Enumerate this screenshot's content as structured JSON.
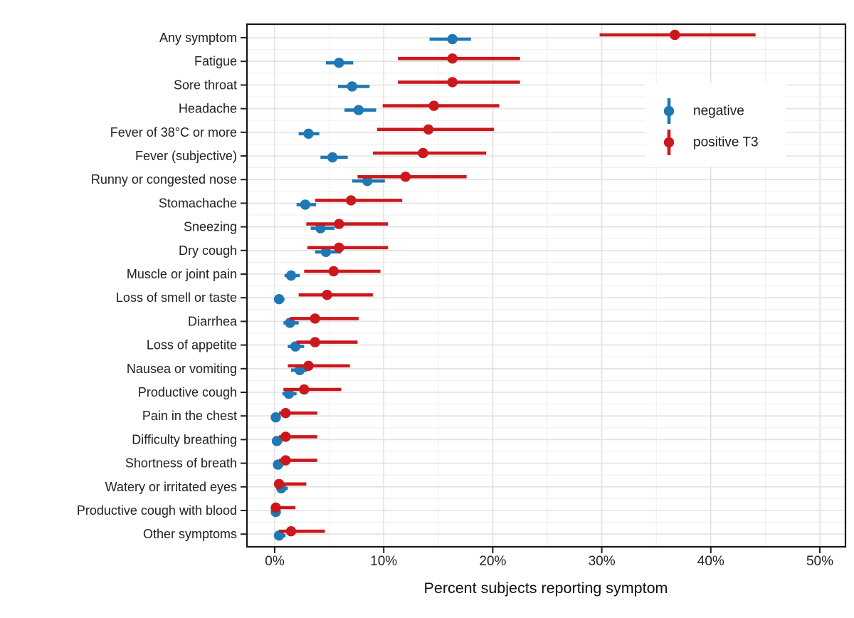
{
  "chart_data": {
    "type": "scatter",
    "subtype": "dot-and-interval (forest plot), horizontal, dodged groups with 95% CI bars",
    "title": "",
    "xlabel": "Percent subjects reporting symptom",
    "ylabel": "",
    "xlim": [
      -2.5,
      52.5
    ],
    "x_ticks": [
      0,
      10,
      20,
      30,
      40,
      50
    ],
    "x_tick_labels": [
      "0%",
      "10%",
      "20%",
      "30%",
      "40%",
      "50%"
    ],
    "x_minor_ticks": [
      5,
      15,
      25,
      35,
      45
    ],
    "grid": "major and minor, light gray on white panel, black panel border",
    "legend_position": "inside top-right",
    "categories": [
      "Any symptom",
      "Fatigue",
      "Sore throat",
      "Headache",
      "Fever of 38°C or more",
      "Fever (subjective)",
      "Runny or congested nose",
      "Stomachache",
      "Sneezing",
      "Dry cough",
      "Muscle or joint pain",
      "Loss of smell or taste",
      "Diarrhea",
      "Loss of appetite",
      "Nausea or vomiting",
      "Productive cough",
      "Pain in the chest",
      "Difficulty breathing",
      "Shortness of breath",
      "Watery or irritated eyes",
      "Productive cough with blood",
      "Other symptoms"
    ],
    "series": [
      {
        "name": "negative",
        "color": "#1f78b4",
        "values": [
          16.3,
          5.9,
          7.1,
          7.7,
          3.1,
          5.3,
          8.5,
          2.8,
          4.2,
          4.7,
          1.5,
          0.4,
          1.4,
          1.9,
          2.3,
          1.3,
          0.1,
          0.2,
          0.3,
          0.6,
          0.1,
          0.4
        ],
        "ci_low": [
          14.2,
          4.7,
          5.8,
          6.4,
          2.2,
          4.2,
          7.1,
          2.0,
          3.3,
          3.7,
          0.9,
          0.1,
          0.8,
          1.2,
          1.5,
          0.7,
          0.0,
          0.0,
          0.1,
          0.2,
          0.0,
          0.1
        ],
        "ci_high": [
          18.0,
          7.2,
          8.7,
          9.3,
          4.1,
          6.7,
          10.1,
          3.8,
          5.5,
          6.1,
          2.3,
          0.9,
          2.2,
          2.7,
          3.0,
          2.0,
          0.5,
          0.7,
          0.8,
          1.2,
          0.3,
          1.0
        ]
      },
      {
        "name": "positive T3",
        "color": "#cb181d",
        "values": [
          36.7,
          16.3,
          16.3,
          14.6,
          14.1,
          13.6,
          12.0,
          7.0,
          5.9,
          5.9,
          5.4,
          4.8,
          3.7,
          3.7,
          3.1,
          2.7,
          1.0,
          1.0,
          1.0,
          0.4,
          0.1,
          1.5
        ],
        "ci_low": [
          29.8,
          11.3,
          11.3,
          9.9,
          9.4,
          9.0,
          7.6,
          3.7,
          2.9,
          3.0,
          2.7,
          2.2,
          1.4,
          2.0,
          1.2,
          0.8,
          0.4,
          0.4,
          0.4,
          0.0,
          0.0,
          0.4
        ],
        "ci_high": [
          44.1,
          22.5,
          22.5,
          20.6,
          20.1,
          19.4,
          17.6,
          11.7,
          10.4,
          10.4,
          9.7,
          9.0,
          7.7,
          7.6,
          6.9,
          6.1,
          3.9,
          3.9,
          3.9,
          2.9,
          1.9,
          4.6
        ]
      }
    ],
    "colors": {
      "panel_border": "#171717",
      "grid_major": "#e2e2e2",
      "grid_minor": "#efefef",
      "axis_text": "#212121",
      "axis_title": "#111111"
    }
  }
}
